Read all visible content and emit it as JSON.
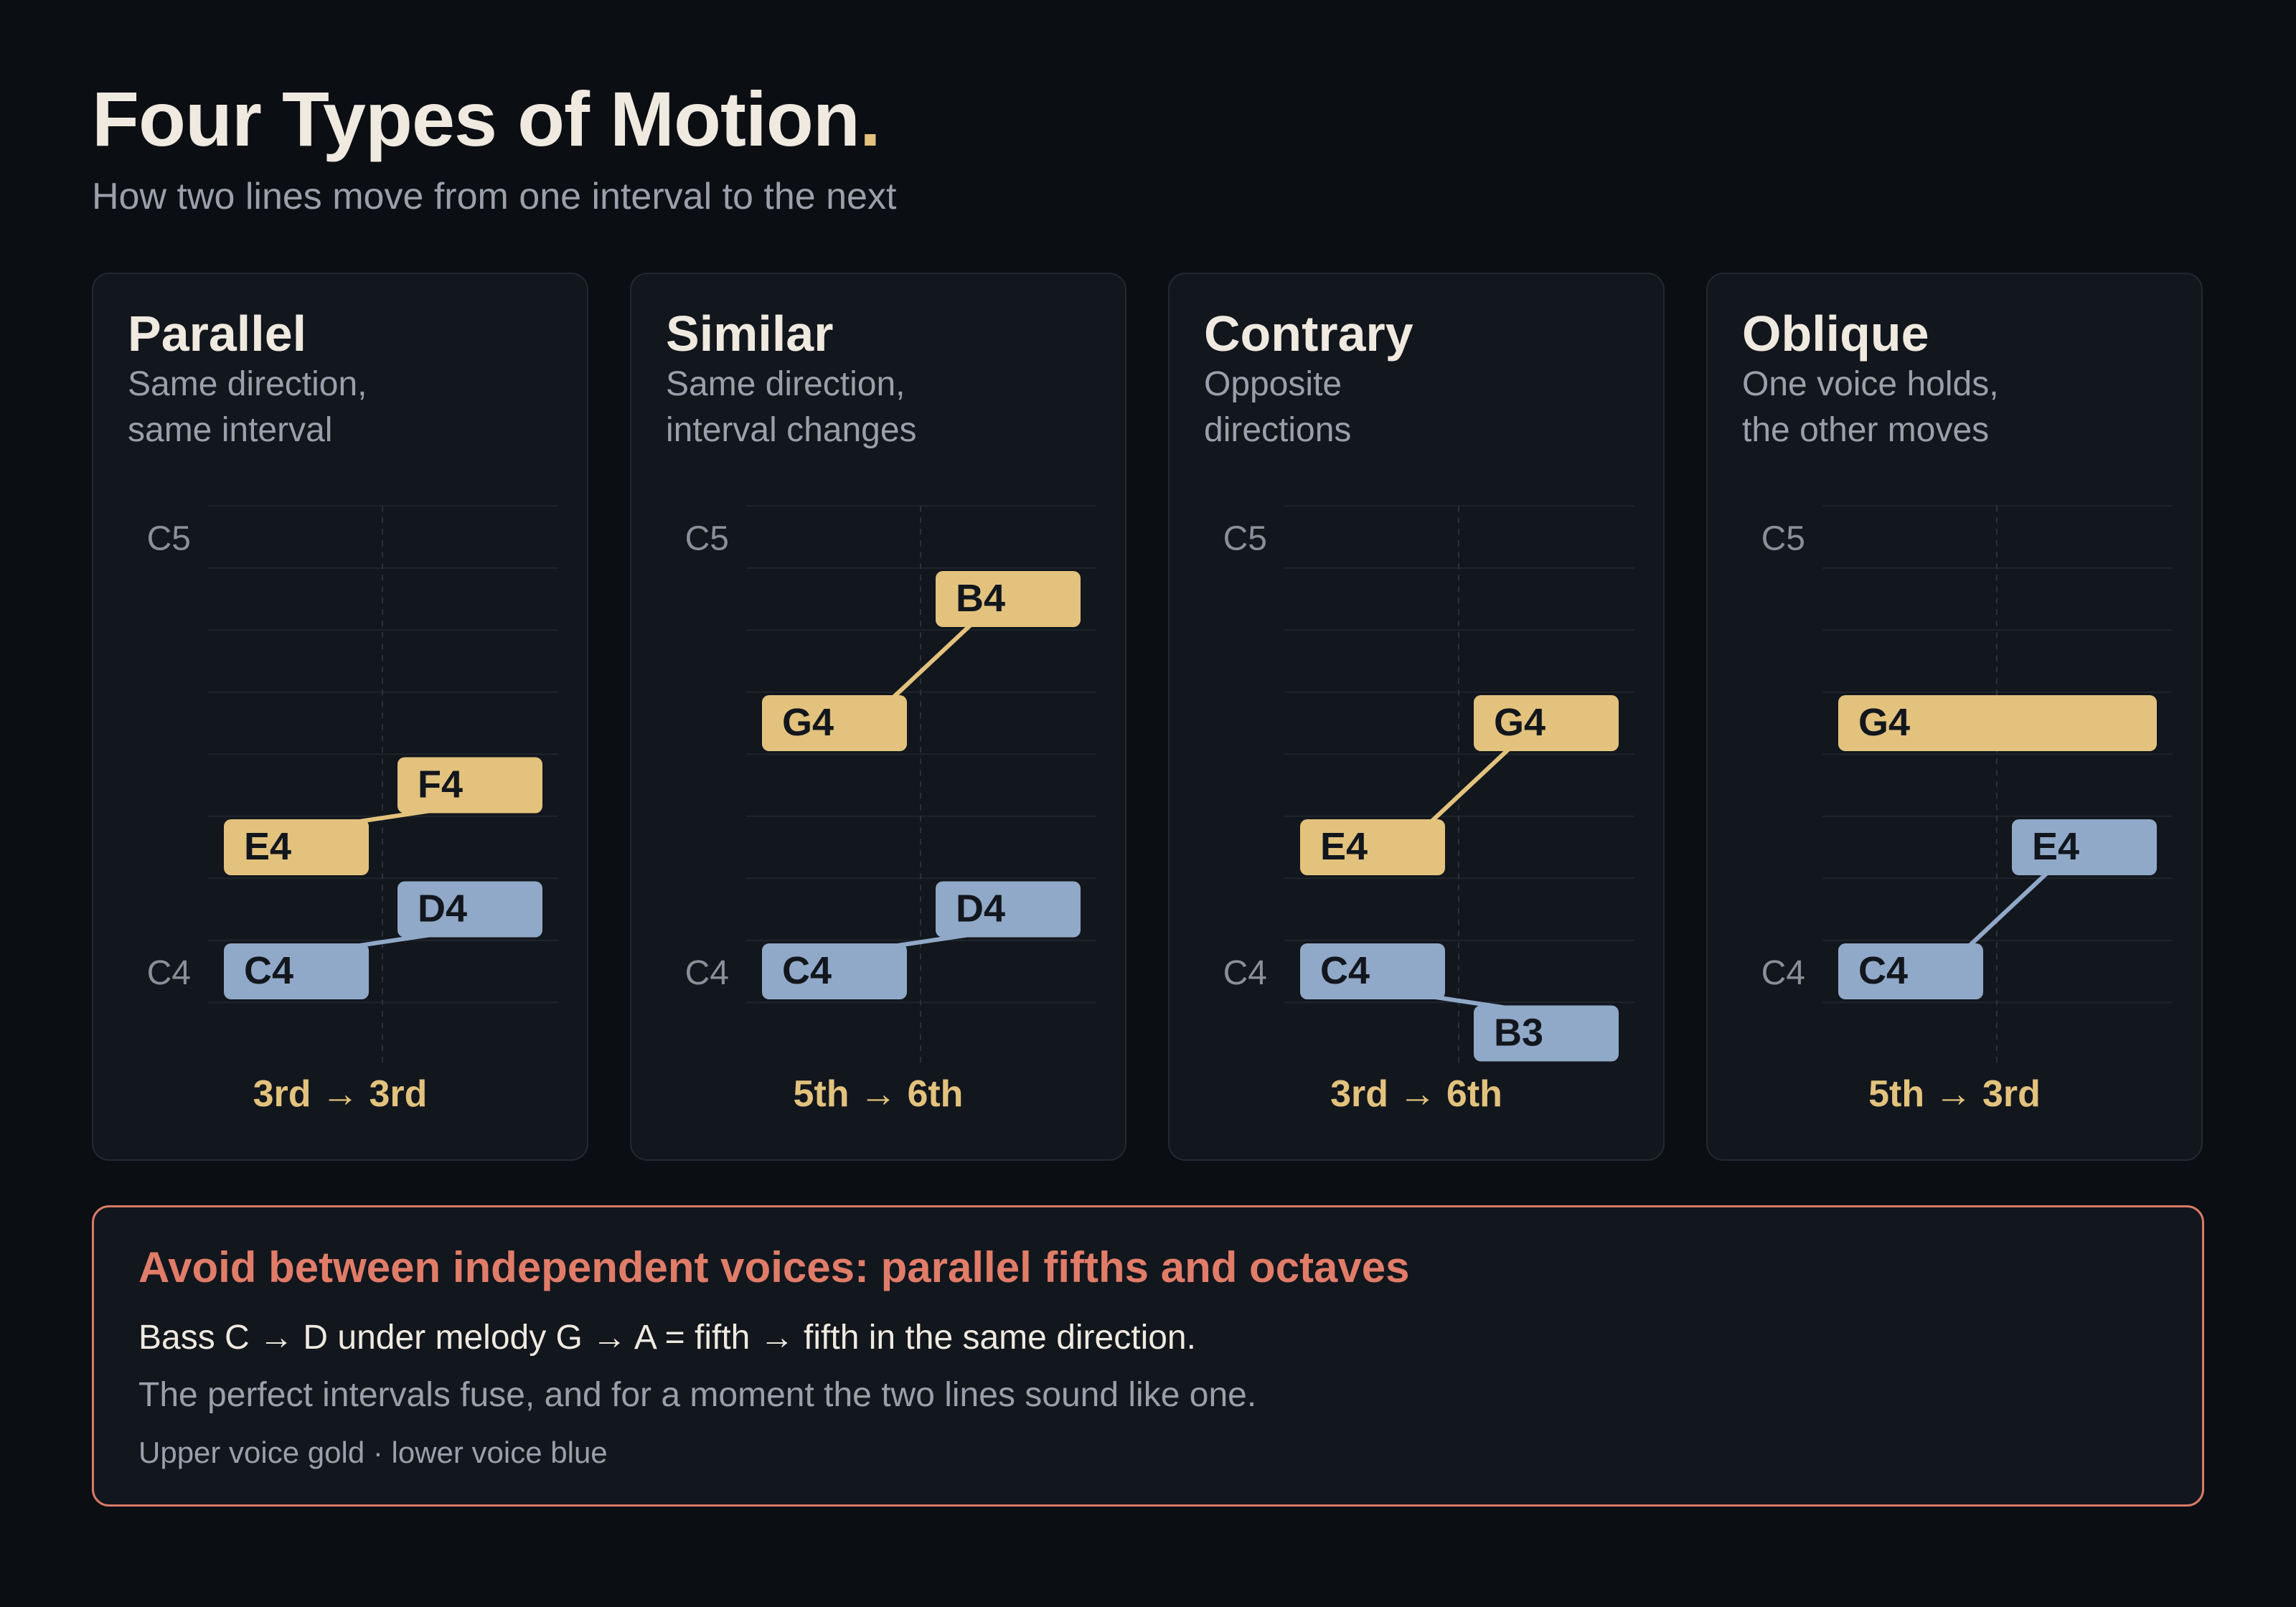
{
  "header": {
    "title": "Four Types of Motion",
    "title_dot": ".",
    "subtitle": "How two lines move from one interval to the next"
  },
  "colors": {
    "upper_voice": "#e2c27d",
    "lower_voice": "#91a9c8",
    "accent_warning": "#e07c68",
    "background": "#0b0e13",
    "card": "#12161d"
  },
  "cards": [
    {
      "title": "Parallel",
      "desc_line1": "Same direction,",
      "desc_line2": "same interval",
      "axis_top": "C5",
      "axis_bottom": "C4",
      "upper": [
        {
          "note": "E4",
          "time": 0,
          "dur": 1
        },
        {
          "note": "F4",
          "time": 1,
          "dur": 1
        }
      ],
      "lower": [
        {
          "note": "C4",
          "time": 0,
          "dur": 1
        },
        {
          "note": "D4",
          "time": 1,
          "dur": 1
        }
      ],
      "interval": "3rd → 3rd"
    },
    {
      "title": "Similar",
      "desc_line1": "Same direction,",
      "desc_line2": "interval changes",
      "axis_top": "C5",
      "axis_bottom": "C4",
      "upper": [
        {
          "note": "G4",
          "time": 0,
          "dur": 1
        },
        {
          "note": "B4",
          "time": 1,
          "dur": 1
        }
      ],
      "lower": [
        {
          "note": "C4",
          "time": 0,
          "dur": 1
        },
        {
          "note": "D4",
          "time": 1,
          "dur": 1
        }
      ],
      "interval": "5th → 6th"
    },
    {
      "title": "Contrary",
      "desc_line1": "Opposite",
      "desc_line2": "directions",
      "axis_top": "C5",
      "axis_bottom": "C4",
      "upper": [
        {
          "note": "E4",
          "time": 0,
          "dur": 1
        },
        {
          "note": "G4",
          "time": 1,
          "dur": 1
        }
      ],
      "lower": [
        {
          "note": "C4",
          "time": 0,
          "dur": 1
        },
        {
          "note": "B3",
          "time": 1,
          "dur": 1
        }
      ],
      "interval": "3rd → 6th"
    },
    {
      "title": "Oblique",
      "desc_line1": "One voice holds,",
      "desc_line2": "the other moves",
      "axis_top": "C5",
      "axis_bottom": "C4",
      "upper": [
        {
          "note": "G4",
          "time": 0,
          "dur": 2
        }
      ],
      "lower": [
        {
          "note": "C4",
          "time": 0,
          "dur": 1
        },
        {
          "note": "E4",
          "time": 1,
          "dur": 1
        }
      ],
      "interval": "5th → 3rd"
    }
  ],
  "warning": {
    "title": "Avoid between independent voices: parallel fifths and octaves",
    "line1": "Bass C → D under melody G → A = fifth → fifth in the same direction.",
    "line2": "The perfect intervals fuse, and for a moment the two lines sound like one.",
    "note": "Upper voice gold · lower voice blue"
  }
}
